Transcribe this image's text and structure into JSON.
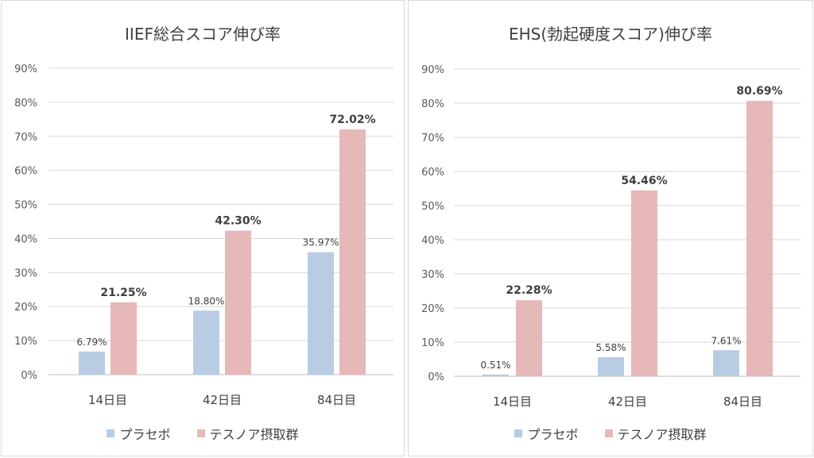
{
  "colors": {
    "placebo": "#b8cce4",
    "tesunoa": "#e6b8b7",
    "grid": "#d9d9d9",
    "axis": "#bfbfbf"
  },
  "legend": {
    "placebo": "プラセボ",
    "tesunoa": "テスノア摂取群"
  },
  "chart_data": [
    {
      "type": "bar",
      "title": "IIEF総合スコア伸び率",
      "categories": [
        "14日目",
        "42日目",
        "84日目"
      ],
      "ylim": [
        0,
        90
      ],
      "yticks": [
        "0%",
        "10%",
        "20%",
        "30%",
        "40%",
        "50%",
        "60%",
        "70%",
        "80%",
        "90%"
      ],
      "grid": true,
      "legend_position": "bottom",
      "series": [
        {
          "name": "プラセボ",
          "values": [
            6.79,
            18.8,
            35.97
          ],
          "labels": [
            "6.79%",
            "18.80%",
            "35.97%"
          ]
        },
        {
          "name": "テスノア摂取群",
          "values": [
            21.25,
            42.3,
            72.02
          ],
          "labels": [
            "21.25%",
            "42.30%",
            "72.02%"
          ]
        }
      ]
    },
    {
      "type": "bar",
      "title": "EHS(勃起硬度スコア)伸び率",
      "categories": [
        "14日目",
        "42日目",
        "84日目"
      ],
      "ylim": [
        0,
        90
      ],
      "yticks": [
        "0%",
        "10%",
        "20%",
        "30%",
        "40%",
        "50%",
        "60%",
        "70%",
        "80%",
        "90%"
      ],
      "grid": true,
      "legend_position": "bottom",
      "series": [
        {
          "name": "プラセボ",
          "values": [
            0.51,
            5.58,
            7.61
          ],
          "labels": [
            "0.51%",
            "5.58%",
            "7.61%"
          ]
        },
        {
          "name": "テスノア摂取群",
          "values": [
            22.28,
            54.46,
            80.69
          ],
          "labels": [
            "22.28%",
            "54.46%",
            "80.69%"
          ]
        }
      ]
    }
  ]
}
